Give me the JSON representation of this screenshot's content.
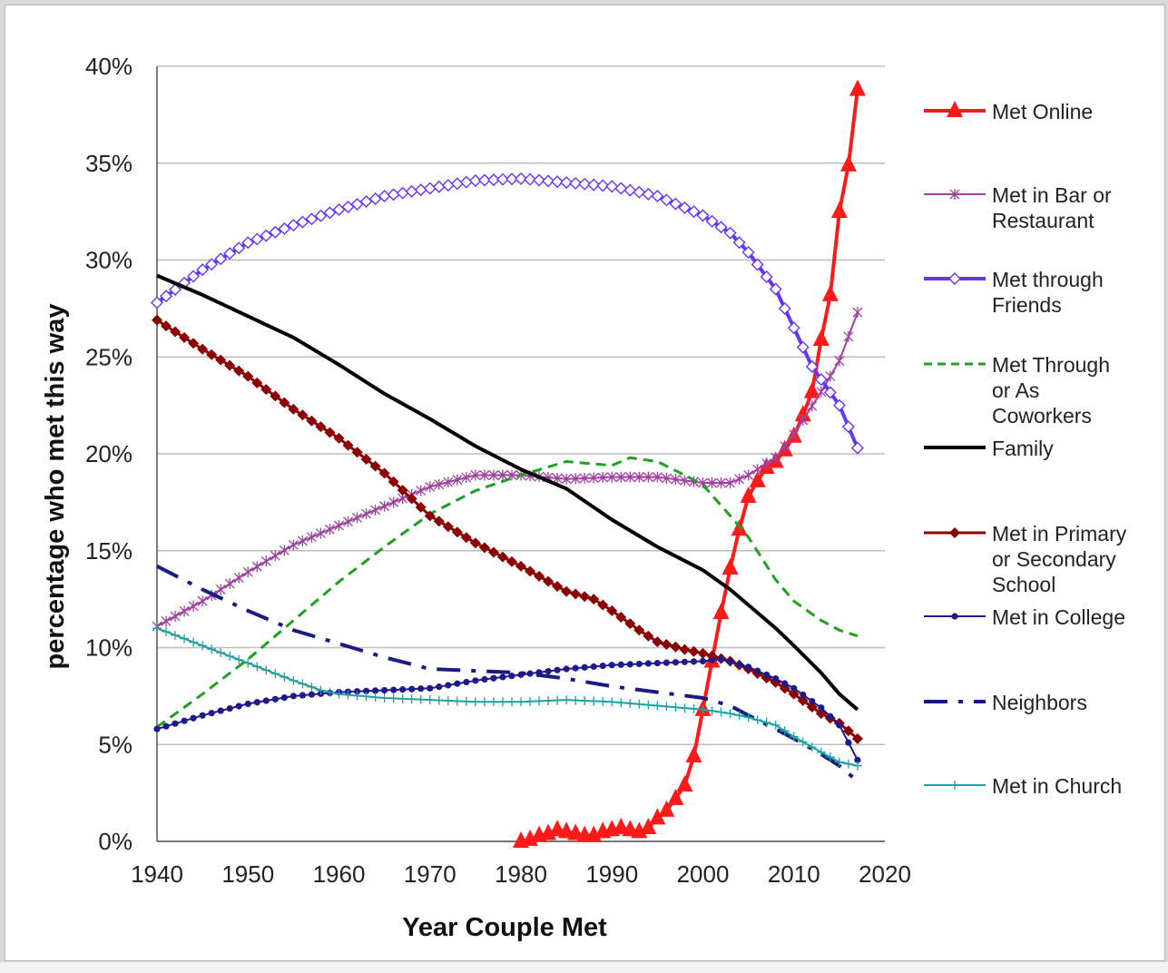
{
  "chart_data": {
    "type": "line",
    "title": "",
    "xlabel": "Year Couple Met",
    "ylabel": "percentage who met this way",
    "xlim": [
      1940,
      2020
    ],
    "ylim": [
      0,
      40
    ],
    "x_ticks": [
      "1940",
      "1950",
      "1960",
      "1970",
      "1980",
      "1990",
      "2000",
      "2010",
      "2020"
    ],
    "y_ticks": [
      "0%",
      "5%",
      "10%",
      "15%",
      "20%",
      "25%",
      "30%",
      "35%",
      "40%"
    ],
    "grid": "horizontal",
    "legend_position": "right",
    "series": [
      {
        "name": "Met Online",
        "legend": [
          "Met Online"
        ],
        "color": "#ff1a1a",
        "style": "solid",
        "marker": "triangle",
        "width": 4,
        "marker_step": 1,
        "points": [
          [
            1980,
            0
          ],
          [
            1981,
            0.1
          ],
          [
            1982,
            0.3
          ],
          [
            1983,
            0.4
          ],
          [
            1984,
            0.6
          ],
          [
            1985,
            0.5
          ],
          [
            1986,
            0.4
          ],
          [
            1987,
            0.3
          ],
          [
            1988,
            0.3
          ],
          [
            1989,
            0.5
          ],
          [
            1990,
            0.6
          ],
          [
            1991,
            0.7
          ],
          [
            1992,
            0.6
          ],
          [
            1993,
            0.5
          ],
          [
            1994,
            0.7
          ],
          [
            1995,
            1.2
          ],
          [
            1996,
            1.6
          ],
          [
            1997,
            2.2
          ],
          [
            1998,
            2.9
          ],
          [
            1999,
            4.4
          ],
          [
            2000,
            6.8
          ],
          [
            2001,
            9.3
          ],
          [
            2002,
            11.8
          ],
          [
            2003,
            14.1
          ],
          [
            2004,
            16.1
          ],
          [
            2005,
            17.8
          ],
          [
            2006,
            18.6
          ],
          [
            2007,
            19.3
          ],
          [
            2008,
            19.6
          ],
          [
            2009,
            20.2
          ],
          [
            2010,
            20.9
          ],
          [
            2011,
            22.0
          ],
          [
            2012,
            23.2
          ],
          [
            2013,
            25.9
          ],
          [
            2014,
            28.2
          ],
          [
            2015,
            32.5
          ],
          [
            2016,
            34.9
          ],
          [
            2017,
            38.8
          ]
        ]
      },
      {
        "name": "Met in Bar or Restaurant",
        "legend": [
          "Met in Bar or",
          "Restaurant"
        ],
        "color": "#a040a0",
        "style": "solid",
        "marker": "star",
        "width": 2,
        "marker_step": 1,
        "points": [
          [
            1940,
            11.1
          ],
          [
            1945,
            12.4
          ],
          [
            1950,
            13.9
          ],
          [
            1955,
            15.3
          ],
          [
            1960,
            16.3
          ],
          [
            1965,
            17.3
          ],
          [
            1970,
            18.3
          ],
          [
            1975,
            18.9
          ],
          [
            1980,
            18.9
          ],
          [
            1985,
            18.7
          ],
          [
            1990,
            18.8
          ],
          [
            1995,
            18.8
          ],
          [
            2000,
            18.5
          ],
          [
            2003,
            18.5
          ],
          [
            2005,
            18.9
          ],
          [
            2008,
            19.8
          ],
          [
            2010,
            21.0
          ],
          [
            2013,
            23.2
          ],
          [
            2015,
            24.8
          ],
          [
            2017,
            27.3
          ]
        ]
      },
      {
        "name": "Met through Friends",
        "legend": [
          "Met through",
          "Friends"
        ],
        "color": "#6633ff",
        "style": "solid",
        "marker": "diamond",
        "width": 4,
        "marker_step": 1,
        "points": [
          [
            1940,
            27.8
          ],
          [
            1945,
            29.5
          ],
          [
            1950,
            30.9
          ],
          [
            1955,
            31.8
          ],
          [
            1960,
            32.6
          ],
          [
            1965,
            33.3
          ],
          [
            1970,
            33.7
          ],
          [
            1975,
            34.1
          ],
          [
            1980,
            34.2
          ],
          [
            1985,
            34.0
          ],
          [
            1990,
            33.8
          ],
          [
            1995,
            33.3
          ],
          [
            2000,
            32.3
          ],
          [
            2003,
            31.4
          ],
          [
            2005,
            30.4
          ],
          [
            2008,
            28.5
          ],
          [
            2010,
            26.5
          ],
          [
            2012,
            24.5
          ],
          [
            2015,
            22.5
          ],
          [
            2017,
            20.3
          ]
        ]
      },
      {
        "name": "Met Through or As Coworkers",
        "legend": [
          "Met Through",
          "or As",
          "Coworkers"
        ],
        "color": "#1fa01f",
        "style": "dashed",
        "marker": "none",
        "width": 3,
        "marker_step": 1,
        "points": [
          [
            1940,
            5.9
          ],
          [
            1945,
            7.6
          ],
          [
            1950,
            9.4
          ],
          [
            1955,
            11.4
          ],
          [
            1960,
            13.4
          ],
          [
            1965,
            15.2
          ],
          [
            1970,
            16.9
          ],
          [
            1975,
            18.1
          ],
          [
            1980,
            18.9
          ],
          [
            1985,
            19.6
          ],
          [
            1990,
            19.4
          ],
          [
            1992,
            19.8
          ],
          [
            1995,
            19.6
          ],
          [
            1998,
            18.9
          ],
          [
            2000,
            18.4
          ],
          [
            2003,
            16.8
          ],
          [
            2005,
            15.7
          ],
          [
            2008,
            13.5
          ],
          [
            2010,
            12.4
          ],
          [
            2013,
            11.4
          ],
          [
            2015,
            10.9
          ],
          [
            2017,
            10.6
          ]
        ]
      },
      {
        "name": "Family",
        "legend": [
          "Family"
        ],
        "color": "#000000",
        "style": "solid",
        "marker": "none",
        "width": 4,
        "marker_step": 1,
        "points": [
          [
            1940,
            29.2
          ],
          [
            1945,
            28.2
          ],
          [
            1950,
            27.1
          ],
          [
            1955,
            26.0
          ],
          [
            1960,
            24.6
          ],
          [
            1965,
            23.1
          ],
          [
            1970,
            21.8
          ],
          [
            1975,
            20.4
          ],
          [
            1980,
            19.2
          ],
          [
            1985,
            18.2
          ],
          [
            1990,
            16.6
          ],
          [
            1995,
            15.2
          ],
          [
            2000,
            14.0
          ],
          [
            2003,
            13.0
          ],
          [
            2005,
            12.2
          ],
          [
            2008,
            11.0
          ],
          [
            2010,
            10.1
          ],
          [
            2013,
            8.7
          ],
          [
            2015,
            7.6
          ],
          [
            2017,
            6.8
          ]
        ]
      },
      {
        "name": "Met in Primary or Secondary School",
        "legend": [
          "Met in Primary",
          "or Secondary",
          "School"
        ],
        "color": "#8b0000",
        "style": "solid",
        "marker": "diamond-filled",
        "width": 3,
        "marker_step": 1,
        "points": [
          [
            1940,
            26.9
          ],
          [
            1945,
            25.4
          ],
          [
            1950,
            24.0
          ],
          [
            1955,
            22.3
          ],
          [
            1960,
            20.8
          ],
          [
            1965,
            19.0
          ],
          [
            1970,
            16.8
          ],
          [
            1975,
            15.4
          ],
          [
            1980,
            14.2
          ],
          [
            1985,
            12.9
          ],
          [
            1988,
            12.5
          ],
          [
            1990,
            11.9
          ],
          [
            1993,
            10.9
          ],
          [
            1995,
            10.3
          ],
          [
            1998,
            9.9
          ],
          [
            2000,
            9.7
          ],
          [
            2003,
            9.3
          ],
          [
            2005,
            8.9
          ],
          [
            2008,
            8.2
          ],
          [
            2010,
            7.6
          ],
          [
            2013,
            6.6
          ],
          [
            2015,
            6.1
          ],
          [
            2017,
            5.3
          ]
        ]
      },
      {
        "name": "Met in College",
        "legend": [
          "Met in College"
        ],
        "color": "#1f1a8c",
        "style": "solid",
        "marker": "dot",
        "width": 2,
        "marker_step": 1,
        "points": [
          [
            1940,
            5.8
          ],
          [
            1945,
            6.5
          ],
          [
            1950,
            7.1
          ],
          [
            1955,
            7.5
          ],
          [
            1960,
            7.7
          ],
          [
            1965,
            7.8
          ],
          [
            1970,
            7.9
          ],
          [
            1975,
            8.3
          ],
          [
            1980,
            8.6
          ],
          [
            1985,
            8.9
          ],
          [
            1990,
            9.1
          ],
          [
            1995,
            9.2
          ],
          [
            2000,
            9.3
          ],
          [
            2002,
            9.4
          ],
          [
            2005,
            9.0
          ],
          [
            2008,
            8.4
          ],
          [
            2010,
            7.9
          ],
          [
            2013,
            6.9
          ],
          [
            2015,
            6.0
          ],
          [
            2017,
            4.2
          ]
        ]
      },
      {
        "name": "Neighbors",
        "legend": [
          "Neighbors"
        ],
        "color": "#1a1a80",
        "style": "dashdot",
        "marker": "none",
        "width": 4,
        "marker_step": 1,
        "points": [
          [
            1940,
            14.2
          ],
          [
            1945,
            13.0
          ],
          [
            1950,
            11.9
          ],
          [
            1955,
            10.9
          ],
          [
            1960,
            10.2
          ],
          [
            1965,
            9.5
          ],
          [
            1970,
            8.9
          ],
          [
            1975,
            8.8
          ],
          [
            1980,
            8.7
          ],
          [
            1985,
            8.4
          ],
          [
            1990,
            8.0
          ],
          [
            1995,
            7.7
          ],
          [
            2000,
            7.4
          ],
          [
            2003,
            7.0
          ],
          [
            2005,
            6.5
          ],
          [
            2008,
            5.8
          ],
          [
            2010,
            5.3
          ],
          [
            2013,
            4.5
          ],
          [
            2015,
            3.9
          ],
          [
            2017,
            3.1
          ]
        ]
      },
      {
        "name": "Met in Church",
        "legend": [
          "Met in Church"
        ],
        "color": "#20a0a0",
        "style": "solid",
        "marker": "plus",
        "width": 2,
        "marker_step": 1,
        "points": [
          [
            1940,
            11.0
          ],
          [
            1945,
            10.1
          ],
          [
            1950,
            9.2
          ],
          [
            1955,
            8.3
          ],
          [
            1958,
            7.8
          ],
          [
            1960,
            7.6
          ],
          [
            1965,
            7.4
          ],
          [
            1970,
            7.3
          ],
          [
            1975,
            7.2
          ],
          [
            1980,
            7.2
          ],
          [
            1985,
            7.3
          ],
          [
            1990,
            7.2
          ],
          [
            1995,
            7.0
          ],
          [
            2000,
            6.8
          ],
          [
            2003,
            6.6
          ],
          [
            2005,
            6.4
          ],
          [
            2008,
            6.0
          ],
          [
            2010,
            5.4
          ],
          [
            2013,
            4.6
          ],
          [
            2015,
            4.1
          ],
          [
            2017,
            3.9
          ]
        ]
      }
    ]
  }
}
